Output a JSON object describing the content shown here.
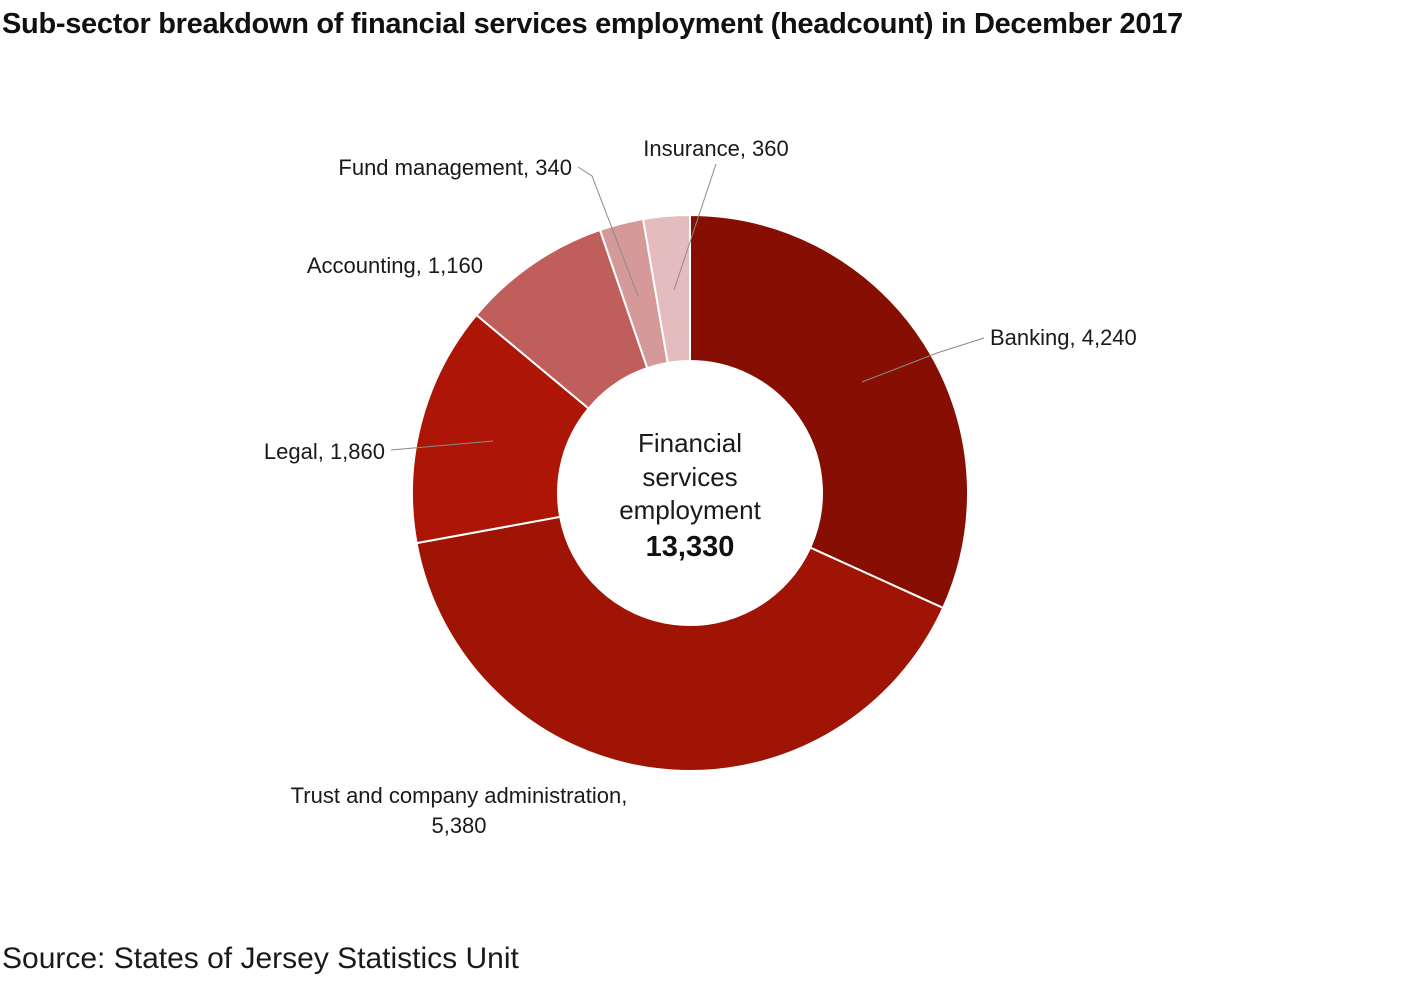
{
  "title": "Sub-sector breakdown of financial services employment (headcount) in December 2017",
  "source": "Source: States of Jersey Statistics Unit",
  "center": {
    "lines": [
      "Financial",
      "services",
      "employment"
    ],
    "total": "13,330"
  },
  "chart_data": {
    "type": "pie",
    "donut": true,
    "title": "Sub-sector breakdown of financial services employment (headcount) in December 2017",
    "categories": [
      "Banking",
      "Trust and company administration",
      "Legal",
      "Accounting",
      "Fund management",
      "Insurance"
    ],
    "values": [
      4240,
      5380,
      1860,
      1160,
      340,
      360
    ],
    "labels": [
      "Banking, 4,240",
      "Trust and company administration, 5,380",
      "Legal, 1,860",
      "Accounting, 1,160",
      "Fund management, 340",
      "Insurance, 360"
    ],
    "colors": [
      "#860e03",
      "#9f1404",
      "#ad1606",
      "#c05e5b",
      "#d6999a",
      "#e5bcbd"
    ],
    "total": 13330,
    "start": "12 o'clock",
    "direction": "clockwise",
    "legend": "none"
  }
}
